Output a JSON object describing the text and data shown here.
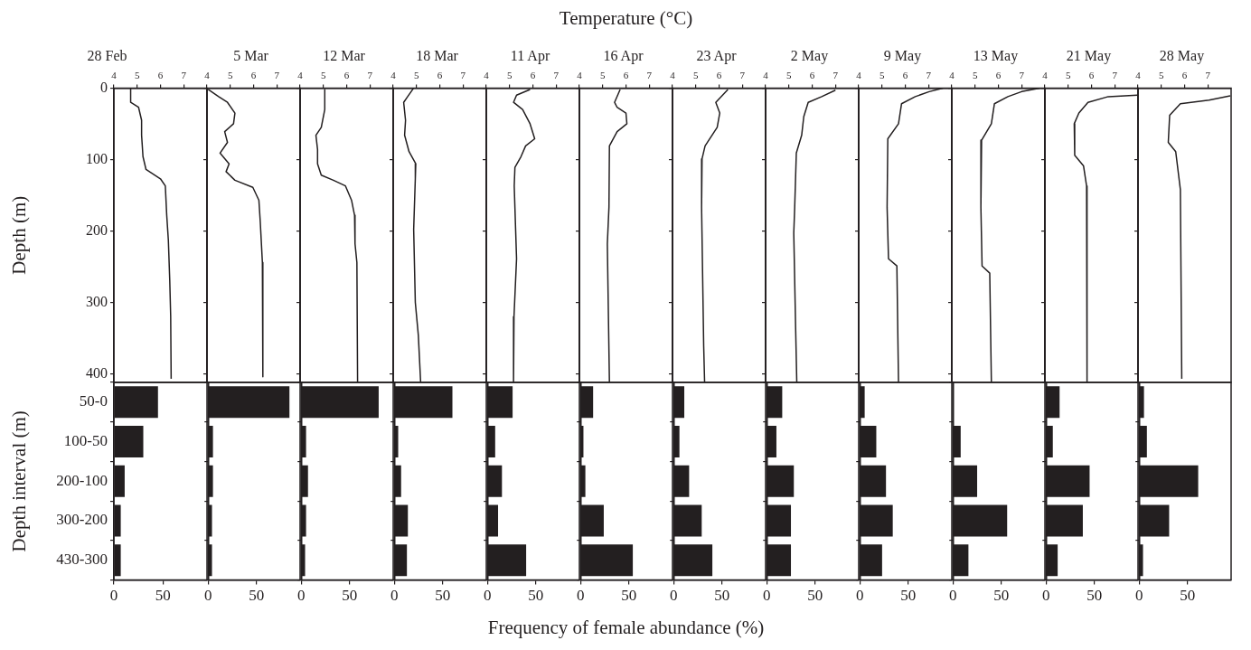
{
  "chart_data": [
    {
      "type": "line",
      "title": "28 Feb",
      "ylabel": "Depth (m)",
      "xlim": [
        4,
        8
      ],
      "xticks": [
        4,
        5,
        6,
        7
      ],
      "ylim": [
        412,
        0
      ],
      "yticks": [
        0,
        100,
        200,
        300,
        400
      ],
      "marker": "none",
      "line_style": "solid",
      "series": [
        {
          "color": "#231f20",
          "x": [
            4.72,
            4.72,
            5.06,
            5.19,
            5.19,
            5.25,
            5.38,
            6.0,
            6.21,
            6.27,
            6.34,
            6.4,
            6.44,
            6.46
          ],
          "values": [
            0,
            20,
            27,
            45,
            66,
            96,
            114,
            127,
            137,
            178,
            213,
            269,
            320,
            407
          ]
        }
      ]
    },
    {
      "type": "line",
      "title": "5 Mar",
      "xlim": [
        4,
        8
      ],
      "xticks": [
        4,
        5,
        6,
        7
      ],
      "ylim": [
        412,
        0
      ],
      "yticks": [
        0,
        100,
        200,
        300,
        400
      ],
      "tick_labels": "x",
      "marker": "none",
      "line_style": "solid",
      "series": [
        {
          "color": "#231f20",
          "x": [
            4.05,
            4.5,
            4.88,
            5.2,
            5.14,
            4.76,
            4.88,
            4.56,
            4.95,
            4.82,
            5.2,
            5.97,
            6.23,
            6.29,
            6.38,
            6.4
          ],
          "values": [
            2,
            12,
            20,
            35,
            50,
            61,
            76,
            91,
            106,
            117,
            129,
            139,
            157,
            188,
            244,
            404
          ]
        }
      ]
    },
    {
      "type": "line",
      "title": "12 Mar",
      "xlim": [
        4,
        8
      ],
      "xticks": [
        4,
        5,
        6,
        7
      ],
      "ylim": [
        412,
        0
      ],
      "yticks": [
        0,
        100,
        200,
        300,
        400
      ],
      "tick_labels": "x",
      "marker": "none",
      "line_style": "solid",
      "series": [
        {
          "color": "#231f20",
          "x": [
            5.06,
            5.06,
            4.91,
            4.68,
            4.75,
            4.75,
            4.91,
            5.43,
            5.95,
            6.21,
            6.34,
            6.36,
            6.44,
            6.47
          ],
          "values": [
            2,
            30,
            55,
            66,
            86,
            106,
            122,
            129,
            137,
            157,
            178,
            218,
            244,
            412
          ]
        }
      ]
    },
    {
      "type": "line",
      "title": "18 Mar",
      "xlim": [
        4,
        8
      ],
      "xticks": [
        4,
        5,
        6,
        7
      ],
      "ylim": [
        412,
        0
      ],
      "yticks": [
        0,
        100,
        200,
        300,
        400
      ],
      "tick_labels": "x",
      "marker": "none",
      "line_style": "solid",
      "series": [
        {
          "color": "#231f20",
          "x": [
            4.88,
            4.62,
            4.45,
            4.53,
            4.49,
            4.68,
            4.97,
            4.95,
            4.88,
            4.95,
            5.08,
            5.18
          ],
          "values": [
            0,
            12,
            20,
            45,
            66,
            89,
            106,
            127,
            198,
            300,
            346,
            412
          ]
        }
      ]
    },
    {
      "type": "line",
      "title": "11 Apr",
      "xlim": [
        4,
        8
      ],
      "xticks": [
        4,
        5,
        6,
        7
      ],
      "ylim": [
        412,
        0
      ],
      "yticks": [
        0,
        100,
        200,
        300,
        400
      ],
      "tick_labels": "x",
      "marker": "none",
      "line_style": "solid",
      "series": [
        {
          "color": "#231f20",
          "x": [
            5.88,
            5.3,
            5.17,
            5.56,
            5.88,
            6.08,
            5.69,
            5.49,
            5.23,
            5.2,
            5.3,
            5.19,
            5.17
          ],
          "values": [
            2,
            10,
            20,
            30,
            50,
            71,
            81,
            96,
            111,
            137,
            239,
            320,
            412
          ]
        }
      ]
    },
    {
      "type": "line",
      "title": "16 Apr",
      "xlabel": "Temperature (°C)",
      "xlim": [
        4,
        8
      ],
      "xticks": [
        4,
        5,
        6,
        7
      ],
      "ylim": [
        412,
        0
      ],
      "yticks": [
        0,
        100,
        200,
        300,
        400
      ],
      "tick_labels": "x",
      "marker": "none",
      "line_style": "solid",
      "series": [
        {
          "color": "#231f20",
          "x": [
            5.75,
            5.51,
            5.62,
            6.0,
            6.04,
            5.62,
            5.29,
            5.27,
            5.2,
            5.29
          ],
          "values": [
            2,
            20,
            27,
            35,
            50,
            61,
            81,
            167,
            218,
            412
          ]
        }
      ]
    },
    {
      "type": "line",
      "title": "23 Apr",
      "xlim": [
        4,
        8
      ],
      "xticks": [
        4,
        5,
        6,
        7
      ],
      "ylim": [
        412,
        0
      ],
      "yticks": [
        0,
        100,
        200,
        300,
        400
      ],
      "tick_labels": "x",
      "marker": "none",
      "line_style": "solid",
      "series": [
        {
          "color": "#231f20",
          "x": [
            6.38,
            5.86,
            6.03,
            5.92,
            5.4,
            5.27,
            5.25,
            5.34,
            5.38
          ],
          "values": [
            2,
            20,
            35,
            55,
            81,
            99,
            167,
            361,
            412
          ]
        }
      ]
    },
    {
      "type": "line",
      "title": "2 May",
      "xlim": [
        4,
        8
      ],
      "xticks": [
        4,
        5,
        6,
        7
      ],
      "ylim": [
        412,
        0
      ],
      "yticks": [
        0,
        100,
        200,
        300,
        400
      ],
      "tick_labels": "x",
      "marker": "none",
      "line_style": "solid",
      "series": [
        {
          "color": "#231f20",
          "x": [
            7.0,
            6.41,
            5.83,
            5.64,
            5.55,
            5.32,
            5.25,
            5.21,
            5.29,
            5.34
          ],
          "values": [
            3,
            12,
            20,
            40,
            66,
            91,
            167,
            203,
            335,
            412
          ]
        }
      ]
    },
    {
      "type": "line",
      "title": "9 May",
      "xlim": [
        4,
        8
      ],
      "xticks": [
        4,
        5,
        6,
        7
      ],
      "ylim": [
        412,
        0
      ],
      "yticks": [
        0,
        100,
        200,
        300,
        400
      ],
      "tick_labels": "x",
      "marker": "none",
      "line_style": "solid",
      "series": [
        {
          "color": "#231f20",
          "x": [
            7.62,
            7.03,
            6.43,
            5.84,
            5.71,
            5.25,
            5.22,
            5.28,
            5.64,
            5.71
          ],
          "values": [
            0,
            5,
            12,
            22,
            50,
            71,
            167,
            239,
            249,
            412
          ]
        }
      ]
    },
    {
      "type": "line",
      "title": "13 May",
      "xlim": [
        4,
        8
      ],
      "xticks": [
        4,
        5,
        6,
        7
      ],
      "ylim": [
        412,
        0
      ],
      "yticks": [
        0,
        100,
        200,
        300,
        400
      ],
      "tick_labels": "x",
      "marker": "none",
      "line_style": "solid",
      "series": [
        {
          "color": "#231f20",
          "x": [
            7.78,
            7.0,
            6.41,
            5.83,
            5.7,
            5.28,
            5.25,
            5.3,
            5.63,
            5.7
          ],
          "values": [
            0,
            5,
            12,
            22,
            50,
            73,
            167,
            249,
            259,
            412
          ]
        }
      ]
    },
    {
      "type": "line",
      "title": "21 May",
      "xlim": [
        4,
        8
      ],
      "xticks": [
        4,
        5,
        6,
        7
      ],
      "ylim": [
        412,
        0
      ],
      "yticks": [
        0,
        100,
        200,
        300,
        400
      ],
      "tick_labels": "x",
      "marker": "none",
      "line_style": "solid",
      "series": [
        {
          "color": "#231f20",
          "x": [
            7.97,
            6.72,
            5.85,
            5.46,
            5.26,
            5.28,
            5.66,
            5.79,
            5.81
          ],
          "values": [
            10,
            12,
            20,
            35,
            50,
            94,
            109,
            137,
            412
          ]
        }
      ]
    },
    {
      "type": "line",
      "title": "28 May",
      "xlim": [
        4,
        8
      ],
      "xticks": [
        4,
        5,
        6,
        7
      ],
      "ylim": [
        412,
        0
      ],
      "yticks": [
        0,
        100,
        200,
        300,
        400
      ],
      "tick_labels": "x",
      "marker": "none",
      "line_style": "solid",
      "series": [
        {
          "color": "#231f20",
          "x": [
            7.96,
            7.05,
            5.82,
            5.36,
            5.3,
            5.62,
            5.82,
            5.88
          ],
          "values": [
            11,
            17,
            22,
            38,
            76,
            89,
            142,
            407
          ]
        }
      ]
    },
    {
      "type": "bar",
      "orientation": "horizontal",
      "ylabel": "Depth interval (m)",
      "categories": [
        "50-0",
        "100-50",
        "200-100",
        "300-200",
        "430-300"
      ],
      "values": [
        45,
        30,
        11,
        7,
        7
      ],
      "color": "#231f20",
      "xlim": [
        0,
        95
      ],
      "xticks": [
        0,
        50
      ]
    },
    {
      "type": "bar",
      "orientation": "horizontal",
      "tick_labels": "x",
      "categories": [
        null,
        null,
        null,
        null,
        null
      ],
      "values": [
        84,
        5,
        5,
        4,
        4
      ],
      "color": "#231f20",
      "xlim": [
        0,
        95
      ],
      "xticks": [
        0,
        50
      ]
    },
    {
      "type": "bar",
      "orientation": "horizontal",
      "tick_labels": "x",
      "categories": [
        null,
        null,
        null,
        null,
        null
      ],
      "values": [
        80,
        5,
        7,
        5,
        4
      ],
      "color": "#231f20",
      "xlim": [
        0,
        95
      ],
      "xticks": [
        0,
        50
      ]
    },
    {
      "type": "bar",
      "orientation": "horizontal",
      "tick_labels": "x",
      "categories": [
        null,
        null,
        null,
        null,
        null
      ],
      "values": [
        60,
        4,
        7,
        14,
        13
      ],
      "color": "#231f20",
      "xlim": [
        0,
        95
      ],
      "xticks": [
        0,
        50
      ]
    },
    {
      "type": "bar",
      "orientation": "horizontal",
      "tick_labels": "x",
      "categories": [
        null,
        null,
        null,
        null,
        null
      ],
      "values": [
        26,
        8,
        15,
        11,
        40
      ],
      "color": "#231f20",
      "xlim": [
        0,
        95
      ],
      "xticks": [
        0,
        50
      ]
    },
    {
      "type": "bar",
      "orientation": "horizontal",
      "tick_labels": "x",
      "xlabel": "Frequency of female abundance (%)",
      "categories": [
        null,
        null,
        null,
        null,
        null
      ],
      "values": [
        13,
        3,
        5,
        24,
        54
      ],
      "color": "#231f20",
      "xlim": [
        0,
        95
      ],
      "xticks": [
        0,
        50
      ]
    },
    {
      "type": "bar",
      "orientation": "horizontal",
      "tick_labels": "x",
      "categories": [
        null,
        null,
        null,
        null,
        null
      ],
      "values": [
        11,
        6,
        16,
        29,
        40
      ],
      "color": "#231f20",
      "xlim": [
        0,
        95
      ],
      "xticks": [
        0,
        50
      ]
    },
    {
      "type": "bar",
      "orientation": "horizontal",
      "tick_labels": "x",
      "categories": [
        null,
        null,
        null,
        null,
        null
      ],
      "values": [
        16,
        10,
        28,
        25,
        25
      ],
      "color": "#231f20",
      "xlim": [
        0,
        95
      ],
      "xticks": [
        0,
        50
      ]
    },
    {
      "type": "bar",
      "orientation": "horizontal",
      "tick_labels": "x",
      "categories": [
        null,
        null,
        null,
        null,
        null
      ],
      "values": [
        5,
        17,
        27,
        34,
        23
      ],
      "color": "#231f20",
      "xlim": [
        0,
        95
      ],
      "xticks": [
        0,
        50
      ]
    },
    {
      "type": "bar",
      "orientation": "horizontal",
      "tick_labels": "x",
      "categories": [
        null,
        null,
        null,
        null,
        null
      ],
      "values": [
        0,
        8,
        25,
        56,
        16
      ],
      "color": "#231f20",
      "xlim": [
        0,
        95
      ],
      "xticks": [
        0,
        50
      ]
    },
    {
      "type": "bar",
      "orientation": "horizontal",
      "tick_labels": "x",
      "categories": [
        null,
        null,
        null,
        null,
        null
      ],
      "values": [
        14,
        7,
        45,
        38,
        12
      ],
      "color": "#231f20",
      "xlim": [
        0,
        95
      ],
      "xticks": [
        0,
        50
      ]
    },
    {
      "type": "bar",
      "orientation": "horizontal",
      "tick_labels": "x",
      "categories": [
        null,
        null,
        null,
        null,
        null
      ],
      "values": [
        5,
        8,
        61,
        31,
        4
      ],
      "color": "#231f20",
      "xlim": [
        0,
        95
      ],
      "xticks": [
        0,
        50
      ]
    }
  ]
}
